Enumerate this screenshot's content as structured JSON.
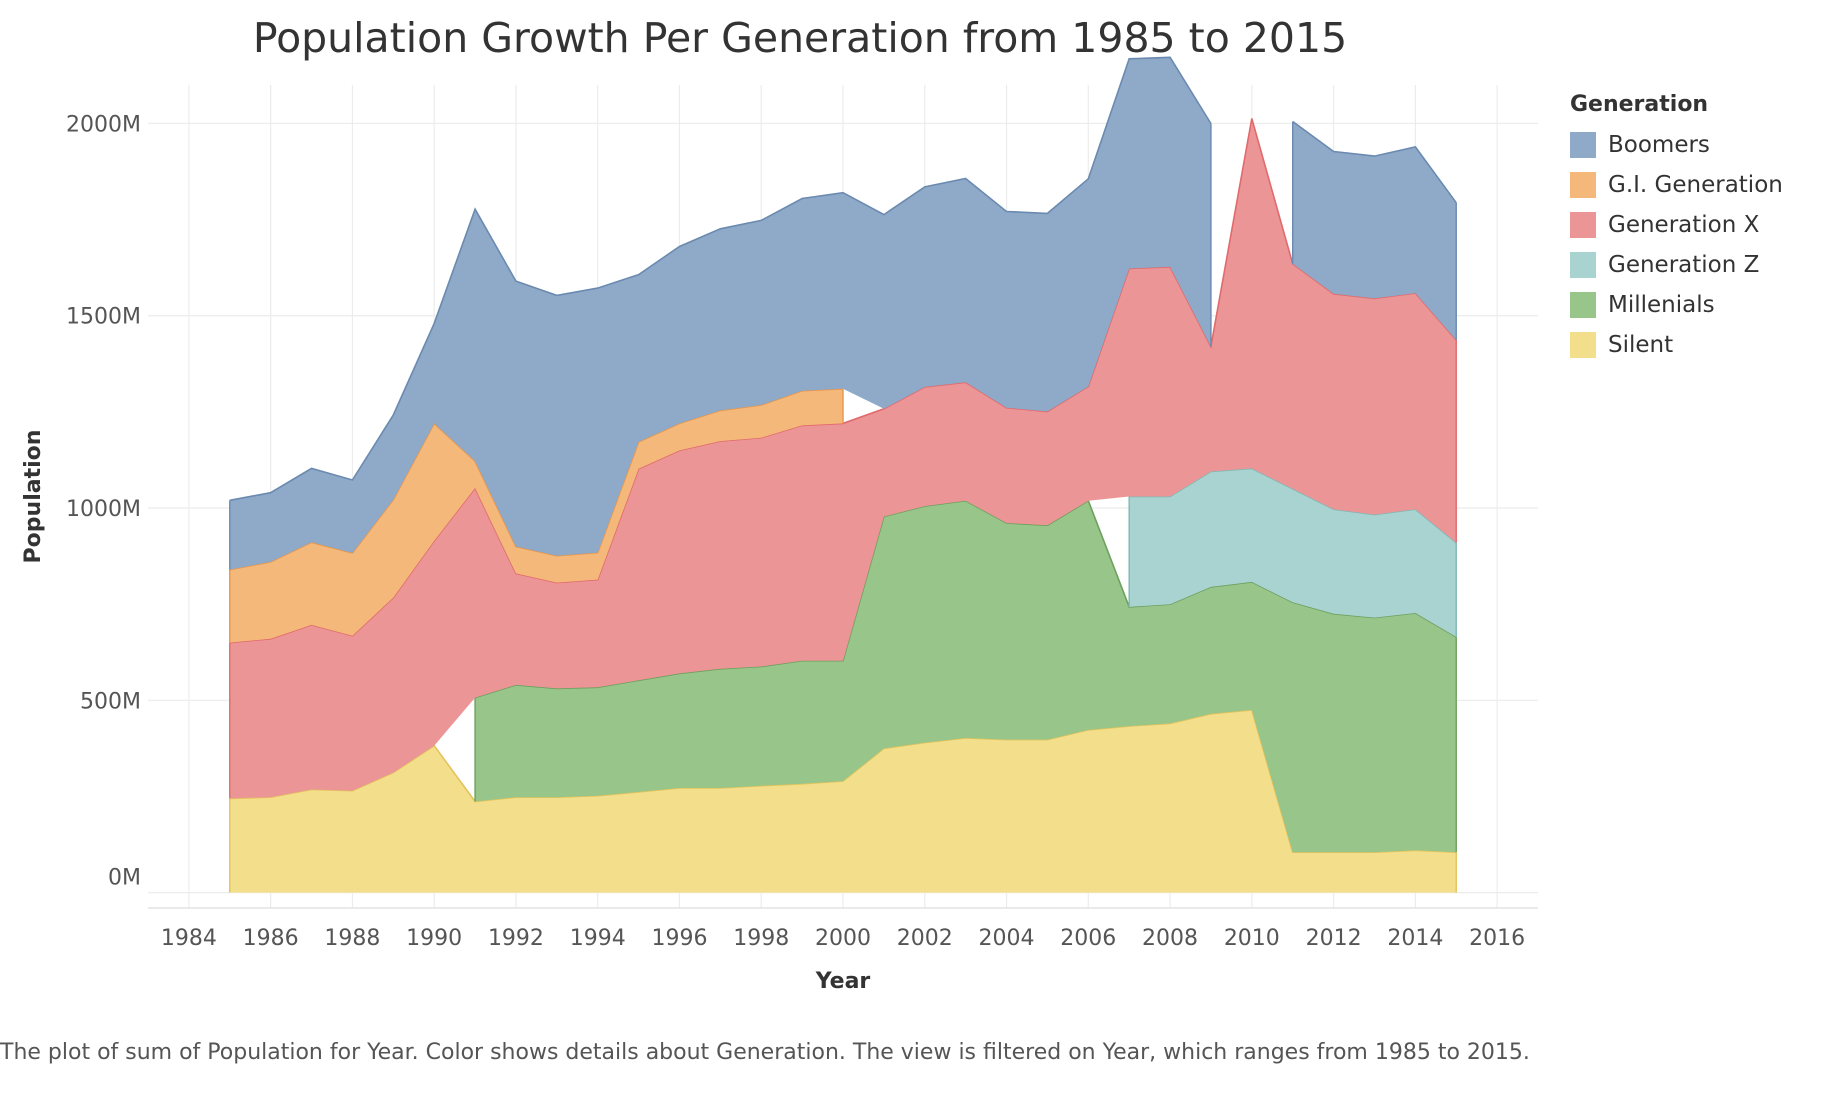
{
  "chart_data": {
    "type": "area",
    "title": "Population Growth Per Generation from 1985 to 2015",
    "xlabel": "Year",
    "ylabel": "Population",
    "x_ticks": [
      1984,
      1986,
      1988,
      1990,
      1992,
      1994,
      1996,
      1998,
      2000,
      2002,
      2004,
      2006,
      2008,
      2010,
      2012,
      2014,
      2016
    ],
    "y_ticks": [
      {
        "value": 0,
        "label": "0M"
      },
      {
        "value": 500,
        "label": "500M"
      },
      {
        "value": 1000,
        "label": "1000M"
      },
      {
        "value": 1500,
        "label": "1500M"
      },
      {
        "value": 2000,
        "label": "2000M"
      }
    ],
    "xlim": [
      1983,
      2017
    ],
    "ylim": [
      -40,
      2100
    ],
    "grid": true,
    "stacked": true,
    "legend_title": "Generation",
    "legend_position": "right",
    "legend": [
      {
        "name": "Boomers",
        "color": "#8fa9c8"
      },
      {
        "name": "G.I. Generation",
        "color": "#f4b87a"
      },
      {
        "name": "Generation X",
        "color": "#ec9596"
      },
      {
        "name": "Generation Z",
        "color": "#a9d3d0"
      },
      {
        "name": "Millenials",
        "color": "#98c58a"
      },
      {
        "name": "Silent",
        "color": "#f3de8c"
      }
    ],
    "x": [
      1985,
      1986,
      1987,
      1988,
      1989,
      1990,
      1991,
      1992,
      1993,
      1994,
      1995,
      1996,
      1997,
      1998,
      1999,
      2000,
      2001,
      2002,
      2003,
      2004,
      2005,
      2006,
      2007,
      2008,
      2009,
      2010,
      2011,
      2012,
      2013,
      2014,
      2015
    ],
    "series": [
      {
        "name": "Silent",
        "color": "#f3de8c",
        "stroke": "#e3c35a",
        "values": [
          245,
          248,
          268,
          265,
          312,
          382,
          237,
          248,
          248,
          252,
          262,
          272,
          272,
          278,
          283,
          290,
          375,
          390,
          402,
          398,
          398,
          423,
          433,
          440,
          465,
          475,
          105,
          105,
          105,
          110,
          105
        ]
      },
      {
        "name": "Millenials",
        "color": "#98c58a",
        "stroke": "#6ea05e",
        "values": [
          null,
          null,
          null,
          null,
          null,
          null,
          270,
          292,
          283,
          282,
          290,
          298,
          310,
          310,
          320,
          313,
          603,
          615,
          617,
          563,
          557,
          596,
          310,
          310,
          330,
          333,
          650,
          620,
          610,
          617,
          560
        ]
      },
      {
        "name": "Generation Z",
        "color": "#a9d3d0",
        "stroke": "#7fb8b4",
        "values": [
          null,
          null,
          null,
          null,
          null,
          null,
          null,
          null,
          null,
          null,
          null,
          null,
          null,
          null,
          null,
          null,
          null,
          null,
          null,
          null,
          null,
          null,
          287,
          280,
          300,
          295,
          295,
          272,
          268,
          270,
          245
        ]
      },
      {
        "name": "Generation X",
        "color": "#ec9596",
        "stroke": "#e06a6c",
        "values": [
          405,
          412,
          428,
          403,
          455,
          533,
          545,
          290,
          275,
          280,
          550,
          580,
          592,
          595,
          612,
          617,
          280,
          310,
          308,
          300,
          296,
          297,
          593,
          597,
          325,
          910,
          585,
          560,
          562,
          562,
          527
        ]
      },
      {
        "name": "G.I. Generation",
        "color": "#f4b87a",
        "stroke": "#e8964a",
        "values": [
          190,
          200,
          215,
          215,
          255,
          305,
          70,
          70,
          70,
          70,
          70,
          70,
          80,
          85,
          90,
          90,
          null,
          null,
          null,
          null,
          null,
          null,
          null,
          null,
          null,
          null,
          null,
          null,
          null,
          null,
          null
        ]
      },
      {
        "name": "Boomers",
        "color": "#8fa9c8",
        "stroke": "#6a8ab0",
        "values": [
          180,
          180,
          192,
          190,
          220,
          260,
          655,
          690,
          677,
          688,
          435,
          460,
          472,
          480,
          500,
          510,
          505,
          520,
          530,
          510,
          515,
          540,
          545,
          545,
          580,
          null,
          370,
          370,
          370,
          380,
          357
        ]
      }
    ]
  },
  "caption": "The plot of sum of Population for Year.  Color shows details about Generation. The view is filtered on Year, which ranges from 1985 to 2015."
}
